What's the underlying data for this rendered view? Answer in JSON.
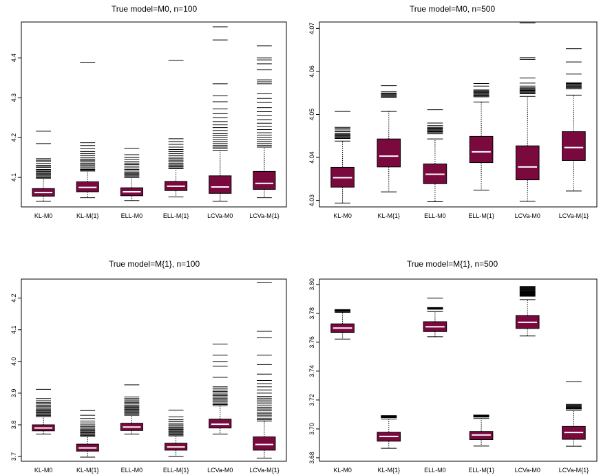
{
  "colors": {
    "box_fill": "#7a0a3e",
    "median": "#ffffff",
    "stroke": "#000000"
  },
  "chart_data": [
    {
      "type": "boxplot",
      "title": "True model=M0, n=100",
      "categories": [
        "KL-M0",
        "KL-M{1}",
        "ELL-M0",
        "ELL-M{1}",
        "LCVa-M0",
        "LCVa-M{1}"
      ],
      "yticks": [
        "4.1",
        "4.2",
        "4.3",
        "4.4"
      ],
      "ylim": [
        4.026,
        4.49
      ],
      "boxes": [
        {
          "min": 4.04,
          "q1": 4.053,
          "median": 4.062,
          "q3": 4.072,
          "max": 4.098,
          "outliers": [
            4.1,
            4.102,
            4.105,
            4.108,
            4.11,
            4.112,
            4.115,
            4.118,
            4.12,
            4.125,
            4.128,
            4.13,
            4.135,
            4.14,
            4.143,
            4.147,
            4.185,
            4.216
          ]
        },
        {
          "min": 4.049,
          "q1": 4.064,
          "median": 4.075,
          "q3": 4.089,
          "max": 4.116,
          "outliers": [
            4.118,
            4.12,
            4.123,
            4.126,
            4.13,
            4.133,
            4.136,
            4.14,
            4.143,
            4.146,
            4.15,
            4.155,
            4.16,
            4.165,
            4.172,
            4.18,
            4.187,
            4.389
          ]
        },
        {
          "min": 4.042,
          "q1": 4.054,
          "median": 4.064,
          "q3": 4.074,
          "max": 4.1,
          "outliers": [
            4.102,
            4.105,
            4.108,
            4.11,
            4.113,
            4.116,
            4.12,
            4.124,
            4.128,
            4.132,
            4.136,
            4.14,
            4.145,
            4.15,
            4.157,
            4.173
          ]
        },
        {
          "min": 4.051,
          "q1": 4.067,
          "median": 4.078,
          "q3": 4.09,
          "max": 4.122,
          "outliers": [
            4.124,
            4.127,
            4.13,
            4.133,
            4.136,
            4.14,
            4.143,
            4.147,
            4.151,
            4.155,
            4.16,
            4.165,
            4.17,
            4.176,
            4.183,
            4.19,
            4.197,
            4.394
          ]
        },
        {
          "min": 4.04,
          "q1": 4.06,
          "median": 4.076,
          "q3": 4.104,
          "max": 4.168,
          "outliers": [
            4.172,
            4.176,
            4.18,
            4.185,
            4.19,
            4.195,
            4.2,
            4.205,
            4.21,
            4.218,
            4.225,
            4.232,
            4.24,
            4.25,
            4.26,
            4.272,
            4.29,
            4.305,
            4.335,
            4.445,
            4.478
          ]
        },
        {
          "min": 4.049,
          "q1": 4.07,
          "median": 4.085,
          "q3": 4.115,
          "max": 4.176,
          "outliers": [
            4.18,
            4.185,
            4.19,
            4.195,
            4.2,
            4.206,
            4.212,
            4.22,
            4.228,
            4.236,
            4.245,
            4.255,
            4.265,
            4.275,
            4.288,
            4.298,
            4.31,
            4.335,
            4.34,
            4.345,
            4.37,
            4.385,
            4.395,
            4.4,
            4.43
          ]
        }
      ]
    },
    {
      "type": "boxplot",
      "title": "True model=M0, n=500",
      "categories": [
        "KL-M0",
        "KL-M{1}",
        "ELL-M0",
        "ELL-M{1}",
        "LCVa-M0",
        "LCVa-M{1}"
      ],
      "yticks": [
        "4.03",
        "4.04",
        "4.05",
        "4.06",
        "4.07"
      ],
      "ylim": [
        4.0285,
        4.0715
      ],
      "boxes": [
        {
          "min": 4.0294,
          "q1": 4.0331,
          "median": 4.0353,
          "q3": 4.0377,
          "max": 4.0438,
          "outliers": [
            4.0444,
            4.0446,
            4.0448,
            4.045,
            4.0452,
            4.0454,
            4.0456,
            4.046,
            4.0464,
            4.0468,
            4.047,
            4.0507
          ]
        },
        {
          "min": 4.032,
          "q1": 4.0378,
          "median": 4.0403,
          "q3": 4.0443,
          "max": 4.0507,
          "outliers": [
            4.054,
            4.0542,
            4.0544,
            4.0546,
            4.0548,
            4.055,
            4.0553,
            4.0567
          ]
        },
        {
          "min": 4.0297,
          "q1": 4.0339,
          "median": 4.0361,
          "q3": 4.0385,
          "max": 4.0443,
          "outliers": [
            4.0455,
            4.0458,
            4.046,
            4.0462,
            4.0464,
            4.0466,
            4.0468,
            4.047,
            4.0474,
            4.048,
            4.0511
          ]
        },
        {
          "min": 4.0324,
          "q1": 4.0388,
          "median": 4.0413,
          "q3": 4.0449,
          "max": 4.0529,
          "outliers": [
            4.0541,
            4.0543,
            4.0545,
            4.0547,
            4.0549,
            4.0551,
            4.0553,
            4.0555,
            4.0557,
            4.0566,
            4.0572
          ]
        },
        {
          "min": 4.0298,
          "q1": 4.0348,
          "median": 4.0378,
          "q3": 4.0427,
          "max": 4.0542,
          "outliers": [
            4.0548,
            4.055,
            4.0552,
            4.0554,
            4.0556,
            4.0558,
            4.056,
            4.0562,
            4.0566,
            4.0573,
            4.0585,
            4.0628,
            4.0632,
            4.0713
          ]
        },
        {
          "min": 4.0322,
          "q1": 4.0393,
          "median": 4.0423,
          "q3": 4.046,
          "max": 4.0545,
          "outliers": [
            4.056,
            4.0562,
            4.0564,
            4.0566,
            4.0568,
            4.057,
            4.0572,
            4.0574,
            4.0594,
            4.0622,
            4.0653
          ]
        }
      ]
    },
    {
      "type": "boxplot",
      "title": "True model=M{1}, n=100",
      "categories": [
        "KL-M0",
        "KL-M{1}",
        "ELL-M0",
        "ELL-M{1}",
        "LCVa-M0",
        "LCVa-M{1}"
      ],
      "yticks": [
        "3.7",
        "3.8",
        "3.9",
        "4.0",
        "4.1",
        "4.2"
      ],
      "ylim": [
        3.685,
        4.26
      ],
      "boxes": [
        {
          "min": 3.771,
          "q1": 3.781,
          "median": 3.79,
          "q3": 3.8,
          "max": 3.826,
          "outliers": [
            3.829,
            3.832,
            3.835,
            3.838,
            3.841,
            3.844,
            3.847,
            3.85,
            3.854,
            3.858,
            3.862,
            3.866,
            3.87,
            3.876,
            3.883,
            3.912
          ]
        },
        {
          "min": 3.698,
          "q1": 3.717,
          "median": 3.727,
          "q3": 3.739,
          "max": 3.764,
          "outliers": [
            3.766,
            3.769,
            3.772,
            3.775,
            3.778,
            3.781,
            3.784,
            3.787,
            3.791,
            3.795,
            3.8,
            3.806,
            3.812,
            3.82,
            3.83,
            3.845
          ]
        },
        {
          "min": 3.771,
          "q1": 3.782,
          "median": 3.793,
          "q3": 3.805,
          "max": 3.83,
          "outliers": [
            3.834,
            3.837,
            3.84,
            3.843,
            3.846,
            3.849,
            3.852,
            3.855,
            3.858,
            3.862,
            3.866,
            3.87,
            3.874,
            3.878,
            3.883,
            3.888,
            3.926
          ]
        },
        {
          "min": 3.7,
          "q1": 3.72,
          "median": 3.73,
          "q3": 3.742,
          "max": 3.765,
          "outliers": [
            3.768,
            3.771,
            3.774,
            3.777,
            3.78,
            3.783,
            3.786,
            3.789,
            3.792,
            3.796,
            3.8,
            3.805,
            3.81,
            3.816,
            3.825,
            3.846
          ]
        },
        {
          "min": 3.771,
          "q1": 3.79,
          "median": 3.802,
          "q3": 3.818,
          "max": 3.86,
          "outliers": [
            3.864,
            3.868,
            3.872,
            3.876,
            3.88,
            3.884,
            3.888,
            3.892,
            3.896,
            3.9,
            3.905,
            3.91,
            3.915,
            3.92,
            3.95,
            3.985,
            4.0,
            4.02,
            4.055
          ]
        },
        {
          "min": 3.695,
          "q1": 3.72,
          "median": 3.738,
          "q3": 3.762,
          "max": 3.812,
          "outliers": [
            3.816,
            3.82,
            3.825,
            3.83,
            3.835,
            3.84,
            3.845,
            3.85,
            3.855,
            3.86,
            3.866,
            3.872,
            3.878,
            3.884,
            3.89,
            3.9,
            3.91,
            3.92,
            3.93,
            3.94,
            3.96,
            3.99,
            4.02,
            4.075,
            4.095,
            4.25
          ]
        }
      ]
    },
    {
      "type": "boxplot",
      "title": "True model=M{1}, n=500",
      "categories": [
        "KL-M0",
        "KL-M{1}",
        "ELL-M0",
        "ELL-M{1}",
        "LCVa-M0",
        "LCVa-M{1}"
      ],
      "yticks": [
        "3.68",
        "3.70",
        "3.72",
        "3.74",
        "3.76",
        "3.78",
        "3.80"
      ],
      "ylim": [
        3.6776,
        3.8037
      ],
      "boxes": [
        {
          "min": 3.7622,
          "q1": 3.7668,
          "median": 3.7698,
          "q3": 3.7727,
          "max": 3.7807,
          "outliers": [
            3.7812,
            3.7814,
            3.7816,
            3.7818,
            3.782,
            3.7822,
            3.7824,
            3.7826
          ]
        },
        {
          "min": 3.6866,
          "q1": 3.6915,
          "median": 3.6948,
          "q3": 3.6977,
          "max": 3.7068,
          "outliers": [
            3.7078,
            3.708,
            3.7082,
            3.7084,
            3.7086,
            3.7088,
            3.709,
            3.7092
          ]
        },
        {
          "min": 3.7638,
          "q1": 3.7674,
          "median": 3.7707,
          "q3": 3.7742,
          "max": 3.7812,
          "outliers": [
            3.7828,
            3.783,
            3.7832,
            3.7834,
            3.7836,
            3.7838,
            3.784,
            3.7905
          ]
        },
        {
          "min": 3.6881,
          "q1": 3.6926,
          "median": 3.6958,
          "q3": 3.6982,
          "max": 3.7072,
          "outliers": [
            3.7082,
            3.7084,
            3.7086,
            3.7088,
            3.709,
            3.7092,
            3.7094,
            3.7096
          ]
        },
        {
          "min": 3.7643,
          "q1": 3.7695,
          "median": 3.7738,
          "q3": 3.7785,
          "max": 3.7895,
          "outliers": [
            3.7918,
            3.7922,
            3.7926,
            3.793,
            3.7934,
            3.7938,
            3.7942,
            3.7946,
            3.795,
            3.7954,
            3.7958,
            3.7962,
            3.7966,
            3.797,
            3.7974,
            3.7978,
            3.7982,
            3.7986
          ]
        },
        {
          "min": 3.688,
          "q1": 3.6928,
          "median": 3.6975,
          "q3": 3.7017,
          "max": 3.7128,
          "outliers": [
            3.7138,
            3.714,
            3.7142,
            3.7146,
            3.715,
            3.7155,
            3.716,
            3.7165,
            3.717,
            3.7326
          ]
        }
      ]
    }
  ]
}
